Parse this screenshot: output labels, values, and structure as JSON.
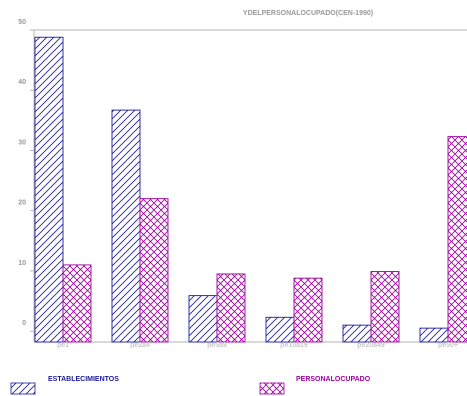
{
  "chart_data": {
    "type": "bar",
    "title": "YDELPERSONALOCUPADO(CEN-1990)",
    "categories": [
      "pe1",
      "pe2a4",
      "pe5a9",
      "pe10a19",
      "pe20a49",
      "pe50+"
    ],
    "series": [
      {
        "name": "ESTABLECIMIENTOS",
        "values": [
          48.8,
          36.7,
          5.9,
          2.3,
          1.0,
          0.5
        ],
        "color": "#1a1aa0",
        "pattern": "diagonal-hatch"
      },
      {
        "name": "PERSONALOCUPADO",
        "values": [
          11.0,
          22.0,
          9.5,
          8.8,
          9.9,
          32.3
        ],
        "color": "#a000a0",
        "pattern": "cross-hatch"
      }
    ],
    "yticks": [
      0,
      10,
      20,
      30,
      40,
      50
    ],
    "ylim": [
      -1.8,
      50
    ],
    "grid": false,
    "legend_position": "bottom"
  }
}
